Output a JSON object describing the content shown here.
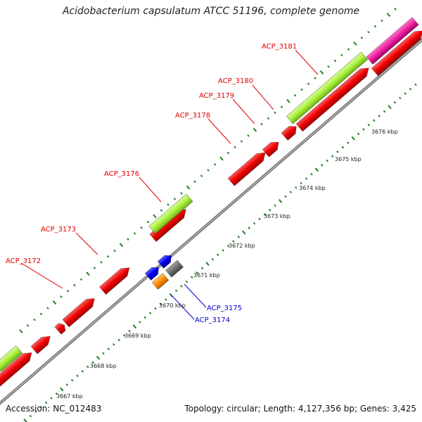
{
  "title": "Acidobacterium capsulatum ATCC 51196, complete genome",
  "footer": {
    "accession": "Accession: NC_012483",
    "summary": "Topology: circular; Length: 4,127,356 bp; Genes: 3,425"
  },
  "colors": {
    "gene_red": "#f00000",
    "gene_green": "#a8f040",
    "gene_magenta": "#f020a0",
    "gene_blue": "#0000f0",
    "gene_gray": "#707070",
    "gene_orange": "#ff8c00",
    "backbone": "#888888",
    "tick_green": "#208020",
    "label_red": "#e00000",
    "label_blue": "#0000d0"
  },
  "scale_labels": [
    "3667 kbp",
    "3668 kbp",
    "3669 kbp",
    "3670 kbp",
    "3671 kbp",
    "3672 kbp",
    "3673 kbp",
    "3674 kbp",
    "3675 kbp",
    "3676 kbp"
  ],
  "gene_labels": [
    {
      "id": "acp3172",
      "text": "ACP_3172",
      "color": "red"
    },
    {
      "id": "acp3173",
      "text": "ACP_3173",
      "color": "red"
    },
    {
      "id": "acp3176",
      "text": "ACP_3176",
      "color": "red"
    },
    {
      "id": "acp3178",
      "text": "ACP_3178",
      "color": "red"
    },
    {
      "id": "acp3179",
      "text": "ACP_3179",
      "color": "red"
    },
    {
      "id": "acp3180",
      "text": "ACP_3180",
      "color": "red"
    },
    {
      "id": "acp3181",
      "text": "ACP_3181",
      "color": "red"
    },
    {
      "id": "acp3175",
      "text": "ACP_3175",
      "color": "blue"
    },
    {
      "id": "acp3174",
      "text": "ACP_3174",
      "color": "blue"
    }
  ]
}
